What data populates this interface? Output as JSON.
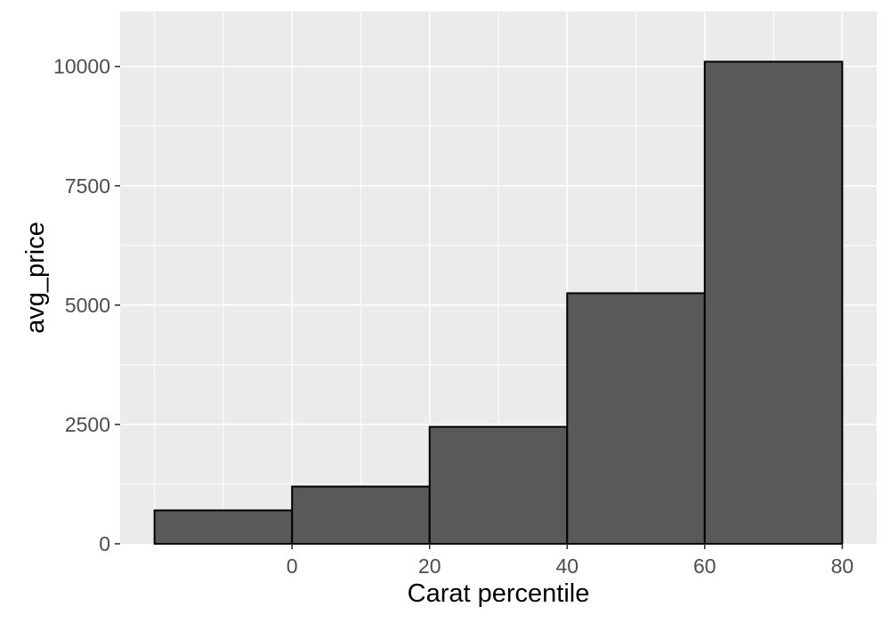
{
  "figure": {
    "colors": {
      "background": "#FFFFFF",
      "panel_background": "#EBEBEB",
      "gridline": "#FFFFFF",
      "bar_fill": "#595959",
      "bar_stroke": "#000000",
      "axis_text": "#4D4D4D",
      "axis_title": "#000000",
      "tick_mark": "#333333"
    }
  },
  "chart_data": {
    "type": "bar",
    "title": "",
    "xlabel": "Carat percentile",
    "ylabel": "avg_price",
    "bins": [
      {
        "x_start": -20,
        "x_end": 0,
        "value": 700
      },
      {
        "x_start": 0,
        "x_end": 20,
        "value": 1200
      },
      {
        "x_start": 20,
        "x_end": 40,
        "value": 2450
      },
      {
        "x_start": 40,
        "x_end": 60,
        "value": 5250
      },
      {
        "x_start": 60,
        "x_end": 80,
        "value": 10100
      }
    ],
    "x_ticks": [
      0,
      20,
      40,
      60,
      80
    ],
    "x_tick_labels": [
      "0",
      "20",
      "40",
      "60",
      "80"
    ],
    "y_ticks": [
      0,
      2500,
      5000,
      7500,
      10000
    ],
    "y_tick_labels": [
      "0",
      "2500",
      "5000",
      "7500",
      "10000"
    ],
    "x_minor_gridlines": [
      -20,
      -10,
      10,
      30,
      50,
      70
    ],
    "y_minor_gridlines": [
      1250,
      3750,
      6250,
      8750
    ],
    "xlim": [
      -25,
      85
    ],
    "ylim": [
      0,
      11150
    ],
    "grid": "white major and minor gridlines on gray panel (ggplot2 theme_gray)",
    "legend": "none"
  }
}
